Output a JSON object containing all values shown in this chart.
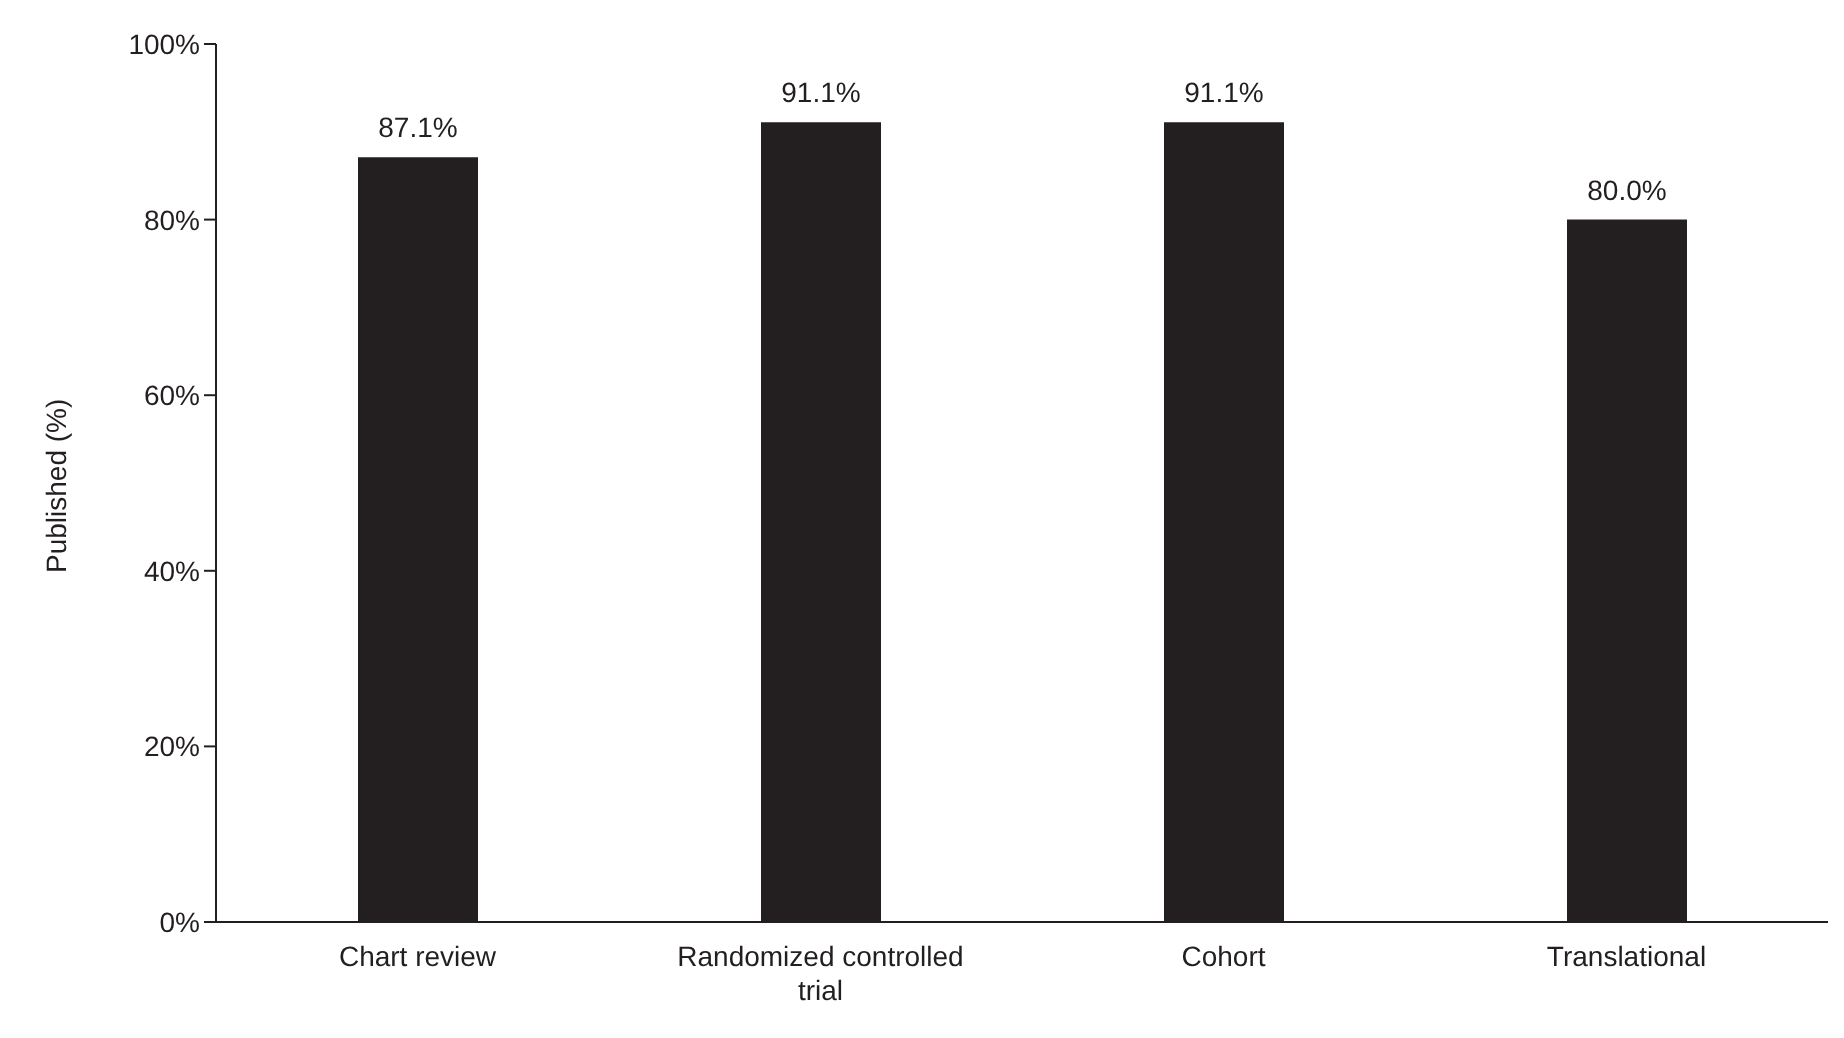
{
  "chart_data": {
    "type": "bar",
    "ylabel": "Published (%)",
    "categories": [
      "Chart review",
      "Randomized controlled trial",
      "Cohort",
      "Translational"
    ],
    "values": [
      87.1,
      91.1,
      91.1,
      80.0
    ],
    "value_labels": [
      "87.1%",
      "91.1%",
      "91.1%",
      "80.0%"
    ],
    "color": "#231f20",
    "ylim": [
      0,
      100
    ],
    "yticks": [
      {
        "value": 0,
        "label": "0%"
      },
      {
        "value": 20,
        "label": "20%"
      },
      {
        "value": 40,
        "label": "40%"
      },
      {
        "value": 60,
        "label": "60%"
      },
      {
        "value": 80,
        "label": "80%"
      },
      {
        "value": 100,
        "label": "100%"
      }
    ],
    "grid": false,
    "legend": false
  }
}
